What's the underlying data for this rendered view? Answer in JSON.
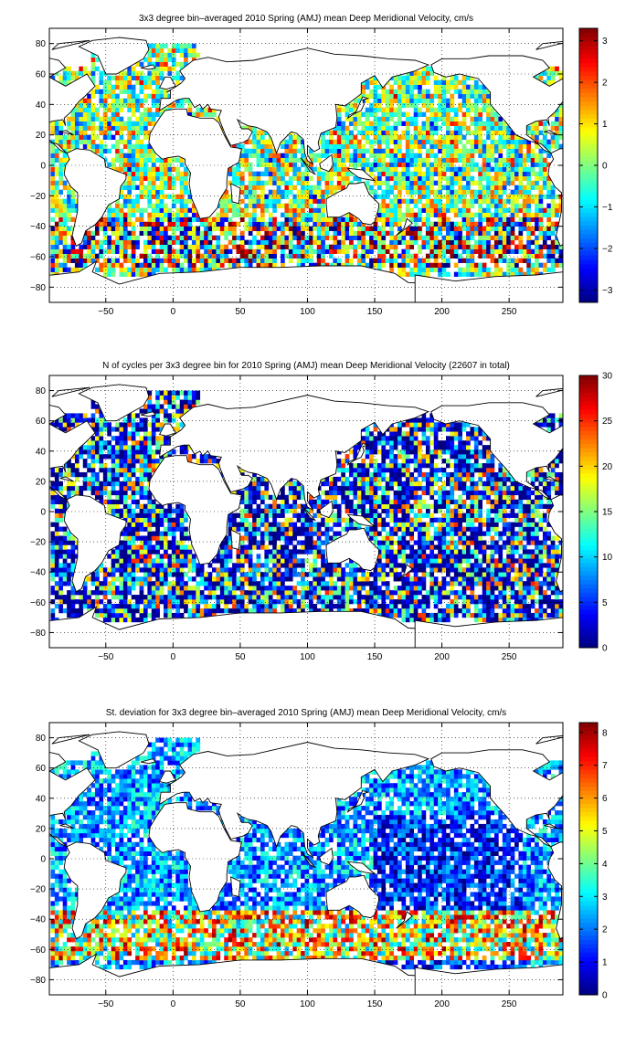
{
  "chart_data": [
    {
      "type": "heatmap",
      "title": "3x3 degree bin–averaged 2010 Spring (AMJ) mean Deep Meridional Velocity, cm/s",
      "xlabel": "",
      "ylabel": "",
      "xlim": [
        -92,
        290
      ],
      "ylim": [
        -90,
        90
      ],
      "xticks": [
        -50,
        0,
        50,
        100,
        150,
        200,
        250
      ],
      "yticks": [
        80,
        60,
        40,
        20,
        0,
        -20,
        -40,
        -60,
        -80
      ],
      "xtick_labels": [
        "−50",
        "0",
        "50",
        "100",
        "150",
        "200",
        "250"
      ],
      "ytick_labels": [
        "80",
        "60",
        "40",
        "20",
        "0",
        "−20",
        "−40",
        "−60",
        "−80"
      ],
      "grid": true,
      "bin_size_deg": 3,
      "colormap": "jet",
      "clim": [
        -3.3,
        3.3
      ],
      "colorbar_ticks": [
        3,
        2,
        1,
        0,
        -1,
        -2,
        -3
      ],
      "colorbar_tick_labels": [
        "3",
        "2",
        "1",
        "0",
        "−1",
        "−2",
        "−3"
      ],
      "field_kind": "velocity"
    },
    {
      "type": "heatmap",
      "title": "N of cycles per 3x3 degree bin for 2010 Spring (AMJ) mean Deep Meridional Velocity (22607 in total)",
      "xlabel": "",
      "ylabel": "",
      "xlim": [
        -92,
        290
      ],
      "ylim": [
        -90,
        90
      ],
      "xticks": [
        -50,
        0,
        50,
        100,
        150,
        200,
        250
      ],
      "yticks": [
        80,
        60,
        40,
        20,
        0,
        -20,
        -40,
        -60,
        -80
      ],
      "xtick_labels": [
        "−50",
        "0",
        "50",
        "100",
        "150",
        "200",
        "250"
      ],
      "ytick_labels": [
        "80",
        "60",
        "40",
        "20",
        "0",
        "−20",
        "−40",
        "−60",
        "−80"
      ],
      "grid": true,
      "bin_size_deg": 3,
      "colormap": "jet",
      "clim": [
        0,
        30
      ],
      "colorbar_ticks": [
        30,
        25,
        20,
        15,
        10,
        5,
        0
      ],
      "colorbar_tick_labels": [
        "30",
        "25",
        "20",
        "15",
        "10",
        "5",
        "0"
      ],
      "total_cycles": 22607,
      "field_kind": "count"
    },
    {
      "type": "heatmap",
      "title": "St. deviation for 3x3 degree bin–averaged 2010 Spring (AMJ) mean Deep Meridional Velocity, cm/s",
      "xlabel": "",
      "ylabel": "",
      "xlim": [
        -92,
        290
      ],
      "ylim": [
        -90,
        90
      ],
      "xticks": [
        -50,
        0,
        50,
        100,
        150,
        200,
        250
      ],
      "yticks": [
        80,
        60,
        40,
        20,
        0,
        -20,
        -40,
        -60,
        -80
      ],
      "xtick_labels": [
        "−50",
        "0",
        "50",
        "100",
        "150",
        "200",
        "250"
      ],
      "ytick_labels": [
        "80",
        "60",
        "40",
        "20",
        "0",
        "−20",
        "−40",
        "−60",
        "−80"
      ],
      "grid": true,
      "bin_size_deg": 3,
      "colormap": "jet",
      "clim": [
        0,
        8.3
      ],
      "colorbar_ticks": [
        8,
        7,
        6,
        5,
        4,
        3,
        2,
        1,
        0
      ],
      "colorbar_tick_labels": [
        "8",
        "7",
        "6",
        "5",
        "4",
        "3",
        "2",
        "1",
        "0"
      ],
      "field_kind": "stdev"
    }
  ]
}
